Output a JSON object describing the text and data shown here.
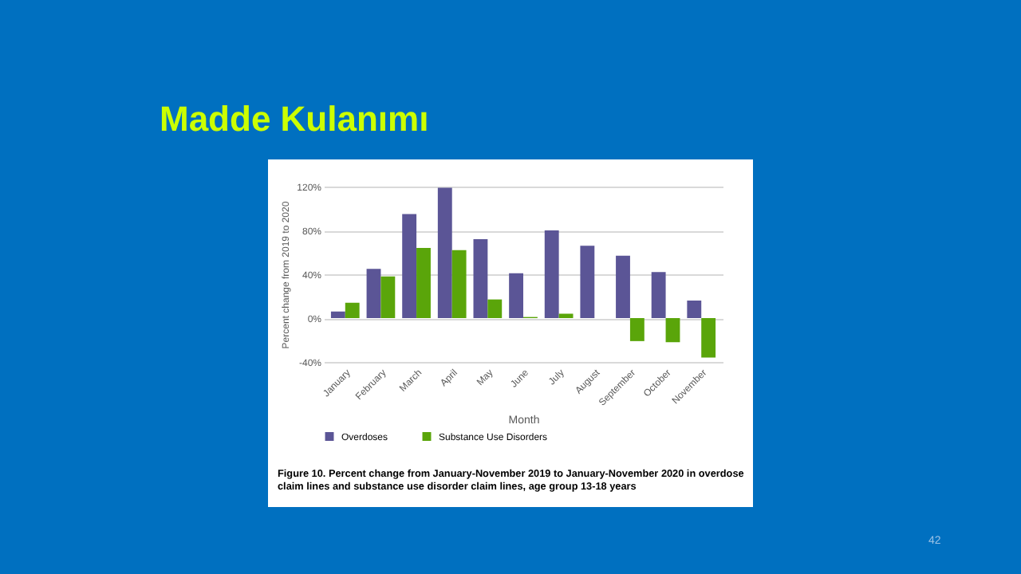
{
  "chart_data": {
    "type": "bar",
    "title": "Madde Kulanımı",
    "categories": [
      "January",
      "February",
      "March",
      "April",
      "May",
      "June",
      "July",
      "August",
      "September",
      "October",
      "November"
    ],
    "series": [
      {
        "name": "Overdoses",
        "color": "#5b5596",
        "values": [
          6,
          45,
          95,
          119,
          72,
          41,
          80,
          66,
          57,
          42,
          16
        ]
      },
      {
        "name": "Substance Use Disorders",
        "color": "#5aa50a",
        "values": [
          14,
          38,
          64,
          62,
          17,
          1,
          4,
          0,
          -21,
          -22,
          -36
        ]
      }
    ],
    "xlabel": "Month",
    "ylabel": "Percent change from 2019 to 2020",
    "ylim": [
      -40,
      120
    ],
    "yticks": [
      {
        "value": -40,
        "label": "-40%"
      },
      {
        "value": 0,
        "label": "0%"
      },
      {
        "value": 40,
        "label": "40%"
      },
      {
        "value": 80,
        "label": "80%"
      },
      {
        "value": 120,
        "label": "120%"
      }
    ],
    "grid": "y",
    "legend": "bottom",
    "annotations": [
      "Figure 10. Percent change from January-November 2019 to January-November 2020 in overdose claim lines and substance use disorder claim lines, age group 13-18 years",
      "42"
    ]
  }
}
